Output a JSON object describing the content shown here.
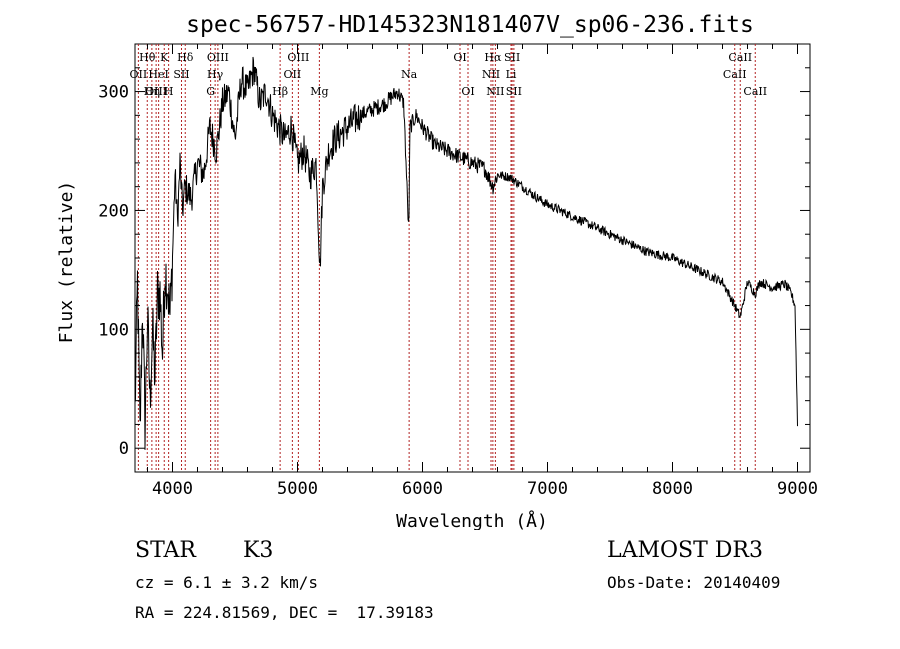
{
  "chart_data": {
    "type": "line",
    "title": "spec-56757-HD145323N181407V_sp06-236.fits",
    "xlabel": "Wavelength (Å)",
    "ylabel": "Flux (relative)",
    "xlim": [
      3700,
      9100
    ],
    "ylim": [
      -20,
      340
    ],
    "xticks": [
      4000,
      5000,
      6000,
      7000,
      8000,
      9000
    ],
    "yticks": [
      0,
      100,
      200,
      300
    ],
    "grid": false,
    "series": [
      {
        "name": "spectrum",
        "x": [
          3700,
          3720,
          3740,
          3760,
          3780,
          3800,
          3820,
          3840,
          3860,
          3880,
          3900,
          3920,
          3940,
          3960,
          3980,
          4000,
          4020,
          4040,
          4060,
          4080,
          4100,
          4150,
          4200,
          4250,
          4300,
          4350,
          4400,
          4450,
          4500,
          4550,
          4600,
          4650,
          4700,
          4750,
          4800,
          4850,
          4900,
          4950,
          5000,
          5050,
          5100,
          5150,
          5180,
          5200,
          5250,
          5300,
          5400,
          5500,
          5600,
          5700,
          5800,
          5850,
          5890,
          5900,
          5950,
          6000,
          6100,
          6200,
          6300,
          6400,
          6500,
          6563,
          6600,
          6700,
          6800,
          6900,
          7000,
          7200,
          7400,
          7600,
          7800,
          8000,
          8200,
          8400,
          8498,
          8542,
          8600,
          8662,
          8700,
          8800,
          8900,
          8950,
          8980,
          9000
        ],
        "y": [
          30,
          140,
          10,
          120,
          20,
          110,
          40,
          100,
          60,
          130,
          130,
          80,
          150,
          140,
          110,
          160,
          230,
          190,
          240,
          200,
          220,
          210,
          240,
          230,
          270,
          250,
          290,
          300,
          260,
          310,
          300,
          320,
          290,
          300,
          280,
          270,
          260,
          270,
          240,
          250,
          230,
          240,
          150,
          220,
          250,
          260,
          270,
          280,
          285,
          290,
          300,
          290,
          180,
          270,
          280,
          270,
          255,
          250,
          245,
          240,
          235,
          220,
          230,
          228,
          220,
          212,
          205,
          195,
          185,
          175,
          165,
          160,
          150,
          140,
          120,
          110,
          140,
          130,
          140,
          135,
          138,
          130,
          120,
          20
        ]
      }
    ],
    "lines": [
      {
        "label": "Hθ",
        "x": 3798,
        "row": 0
      },
      {
        "label": "OII",
        "x": 3727,
        "row": 1
      },
      {
        "label": "OIII",
        "x": 3869,
        "row": 2
      },
      {
        "label": "K",
        "x": 3934,
        "row": 0
      },
      {
        "label": "HeI",
        "x": 3889,
        "row": 1
      },
      {
        "label": "Hη",
        "x": 3835,
        "row": 2
      },
      {
        "label": "SII",
        "x": 4072,
        "row": 1
      },
      {
        "label": "H",
        "x": 3969,
        "row": 2
      },
      {
        "label": "Hδ",
        "x": 4102,
        "row": 0
      },
      {
        "label": "OIII",
        "x": 4363,
        "row": 0
      },
      {
        "label": "Hγ",
        "x": 4341,
        "row": 1
      },
      {
        "label": "G",
        "x": 4305,
        "row": 2
      },
      {
        "label": "OIII",
        "x": 5007,
        "row": 0
      },
      {
        "label": "OII",
        "x": 4959,
        "row": 1
      },
      {
        "label": "Hβ",
        "x": 4861,
        "row": 2
      },
      {
        "label": "Mg",
        "x": 5175,
        "row": 2
      },
      {
        "label": "Na",
        "x": 5893,
        "row": 1
      },
      {
        "label": "OI",
        "x": 6300,
        "row": 0
      },
      {
        "label": "OI",
        "x": 6364,
        "row": 2
      },
      {
        "label": "Hα",
        "x": 6563,
        "row": 0
      },
      {
        "label": "NII",
        "x": 6548,
        "row": 1
      },
      {
        "label": "NII",
        "x": 6583,
        "row": 2
      },
      {
        "label": "SII",
        "x": 6717,
        "row": 0
      },
      {
        "label": "Li",
        "x": 6708,
        "row": 1
      },
      {
        "label": "SII",
        "x": 6731,
        "row": 2
      },
      {
        "label": "CaII",
        "x": 8542,
        "row": 0
      },
      {
        "label": "CaII",
        "x": 8498,
        "row": 1
      },
      {
        "label": "CaII",
        "x": 8662,
        "row": 2
      }
    ]
  },
  "info": {
    "object_class": "STAR",
    "subclass": "K3",
    "survey": "LAMOST DR3",
    "cz": "cz = 6.1 ± 3.2 km/s",
    "obs_date": "Obs-Date: 20140409",
    "coords": "RA = 224.81569, DEC =  17.39183"
  },
  "colors": {
    "spectrum": "#000000",
    "line_marker": "#b22222",
    "axis": "#000000"
  }
}
